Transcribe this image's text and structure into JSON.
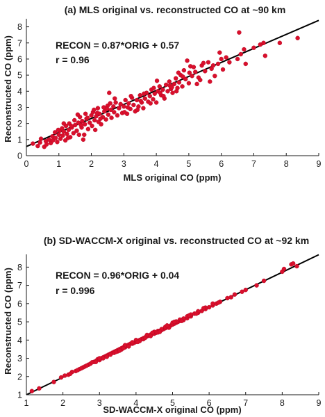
{
  "chart_data": [
    {
      "type": "scatter",
      "title": "(a) MLS original vs. reconstructed CO at ~90 km",
      "xlabel": "MLS original CO (ppm)",
      "ylabel": "Reconstructed CO (ppm)",
      "xlim": [
        0,
        9
      ],
      "ylim": [
        0,
        8.5
      ],
      "xticks": [
        "0",
        "1",
        "2",
        "3",
        "4",
        "5",
        "6",
        "7",
        "8",
        "9"
      ],
      "yticks": [
        "0",
        "1",
        "2",
        "3",
        "4",
        "5",
        "6",
        "7",
        "8"
      ],
      "annotation": {
        "equation": "RECON = 0.87*ORIG + 0.57",
        "r": "r = 0.96"
      },
      "fit": {
        "slope": 0.87,
        "intercept": 0.57
      },
      "grid": false,
      "colors": {
        "points": "#d9102c",
        "fit_line": "#000000"
      },
      "points": [
        [
          0.2,
          0.75
        ],
        [
          0.35,
          0.6
        ],
        [
          0.42,
          0.82
        ],
        [
          0.55,
          0.55
        ],
        [
          0.6,
          0.9
        ],
        [
          0.62,
          0.7
        ],
        [
          0.7,
          1.0
        ],
        [
          0.75,
          0.78
        ],
        [
          0.8,
          1.2
        ],
        [
          0.82,
          0.95
        ],
        [
          0.88,
          1.45
        ],
        [
          0.9,
          1.1
        ],
        [
          0.95,
          0.85
        ],
        [
          1.0,
          1.3
        ],
        [
          1.02,
          1.55
        ],
        [
          1.05,
          1.05
        ],
        [
          1.1,
          1.7
        ],
        [
          1.12,
          1.25
        ],
        [
          1.15,
          1.5
        ],
        [
          1.2,
          0.95
        ],
        [
          1.22,
          1.85
        ],
        [
          1.25,
          1.35
        ],
        [
          1.3,
          1.6
        ],
        [
          1.32,
          2.0
        ],
        [
          1.35,
          1.15
        ],
        [
          1.4,
          1.75
        ],
        [
          1.45,
          1.4
        ],
        [
          1.48,
          2.2
        ],
        [
          1.5,
          1.9
        ],
        [
          1.55,
          1.55
        ],
        [
          1.6,
          2.05
        ],
        [
          1.62,
          1.3
        ],
        [
          1.65,
          2.4
        ],
        [
          1.7,
          1.75
        ],
        [
          1.72,
          2.15
        ],
        [
          1.75,
          1.0
        ],
        [
          1.8,
          1.95
        ],
        [
          1.82,
          2.6
        ],
        [
          1.85,
          2.3
        ],
        [
          1.9,
          1.65
        ],
        [
          1.95,
          2.05
        ],
        [
          2.0,
          2.5
        ],
        [
          2.02,
          1.85
        ],
        [
          2.05,
          2.7
        ],
        [
          2.1,
          2.2
        ],
        [
          2.12,
          1.6
        ],
        [
          2.15,
          2.45
        ],
        [
          2.2,
          2.95
        ],
        [
          2.22,
          2.1
        ],
        [
          2.25,
          2.6
        ],
        [
          2.3,
          1.95
        ],
        [
          2.35,
          2.4
        ],
        [
          2.38,
          3.0
        ],
        [
          2.4,
          2.75
        ],
        [
          2.45,
          2.25
        ],
        [
          2.5,
          3.1
        ],
        [
          2.52,
          2.55
        ],
        [
          2.55,
          3.9
        ],
        [
          2.6,
          2.85
        ],
        [
          2.62,
          2.35
        ],
        [
          2.68,
          3.05
        ],
        [
          2.7,
          2.7
        ],
        [
          2.75,
          3.3
        ],
        [
          2.8,
          2.5
        ],
        [
          2.85,
          2.95
        ],
        [
          2.9,
          3.2
        ],
        [
          2.95,
          2.65
        ],
        [
          3.0,
          3.05
        ],
        [
          3.05,
          3.45
        ],
        [
          3.1,
          2.6
        ],
        [
          3.15,
          3.25
        ],
        [
          3.2,
          2.9
        ],
        [
          3.25,
          3.6
        ],
        [
          3.3,
          3.15
        ],
        [
          3.35,
          2.75
        ],
        [
          3.4,
          3.45
        ],
        [
          3.45,
          3.05
        ],
        [
          3.5,
          3.75
        ],
        [
          3.55,
          3.3
        ],
        [
          3.6,
          2.95
        ],
        [
          3.65,
          3.55
        ],
        [
          3.7,
          3.9
        ],
        [
          3.75,
          3.35
        ],
        [
          3.8,
          3.7
        ],
        [
          3.85,
          4.1
        ],
        [
          3.9,
          3.5
        ],
        [
          3.95,
          3.85
        ],
        [
          4.0,
          3.3
        ],
        [
          4.05,
          4.0
        ],
        [
          4.1,
          4.3
        ],
        [
          4.15,
          3.75
        ],
        [
          4.2,
          4.1
        ],
        [
          4.25,
          3.55
        ],
        [
          4.3,
          4.4
        ],
        [
          4.35,
          4.0
        ],
        [
          4.4,
          4.6
        ],
        [
          4.45,
          4.15
        ],
        [
          4.5,
          3.9
        ],
        [
          4.55,
          4.45
        ],
        [
          4.6,
          4.8
        ],
        [
          4.65,
          4.2
        ],
        [
          4.7,
          4.55
        ],
        [
          4.75,
          5.0
        ],
        [
          4.8,
          4.3
        ],
        [
          4.85,
          5.3
        ],
        [
          4.9,
          4.75
        ],
        [
          4.95,
          5.9
        ],
        [
          5.0,
          4.5
        ],
        [
          5.05,
          5.55
        ],
        [
          5.1,
          4.95
        ],
        [
          5.2,
          5.2
        ],
        [
          5.3,
          4.85
        ],
        [
          5.4,
          5.6
        ],
        [
          5.5,
          5.25
        ],
        [
          5.6,
          5.8
        ],
        [
          5.65,
          4.6
        ],
        [
          5.7,
          5.4
        ],
        [
          5.8,
          4.95
        ],
        [
          5.9,
          5.7
        ],
        [
          6.0,
          6.0
        ],
        [
          6.05,
          5.35
        ],
        [
          6.15,
          6.1
        ],
        [
          6.55,
          7.65
        ],
        [
          6.6,
          6.3
        ],
        [
          6.7,
          6.6
        ],
        [
          6.75,
          5.7
        ],
        [
          7.0,
          6.7
        ],
        [
          7.2,
          6.9
        ],
        [
          7.3,
          7.0
        ],
        [
          7.35,
          6.2
        ],
        [
          7.8,
          7.0
        ],
        [
          8.35,
          7.3
        ],
        [
          0.45,
          1.05
        ],
        [
          1.15,
          2.0
        ],
        [
          1.58,
          2.55
        ],
        [
          1.78,
          1.3
        ],
        [
          2.08,
          2.85
        ],
        [
          2.28,
          2.3
        ],
        [
          2.48,
          2.9
        ],
        [
          2.72,
          3.55
        ],
        [
          3.02,
          2.7
        ],
        [
          3.22,
          3.7
        ],
        [
          3.42,
          2.85
        ],
        [
          3.62,
          3.85
        ],
        [
          3.82,
          3.25
        ],
        [
          4.02,
          4.65
        ],
        [
          4.22,
          3.7
        ],
        [
          4.42,
          4.35
        ],
        [
          4.62,
          4.0
        ],
        [
          4.82,
          4.9
        ],
        [
          5.02,
          5.15
        ],
        [
          5.25,
          4.45
        ],
        [
          5.45,
          5.75
        ],
        [
          5.75,
          5.6
        ],
        [
          5.95,
          6.4
        ],
        [
          6.25,
          5.8
        ],
        [
          6.5,
          6.0
        ],
        [
          1.38,
          1.85
        ],
        [
          1.68,
          1.9
        ],
        [
          2.18,
          2.65
        ],
        [
          2.58,
          3.25
        ],
        [
          3.12,
          3.0
        ],
        [
          3.52,
          3.4
        ],
        [
          3.92,
          4.2
        ],
        [
          4.12,
          3.9
        ],
        [
          4.48,
          4.25
        ],
        [
          4.68,
          5.15
        ],
        [
          5.15,
          5.5
        ],
        [
          5.35,
          4.7
        ],
        [
          0.98,
          1.6
        ],
        [
          1.28,
          1.1
        ],
        [
          1.88,
          2.35
        ]
      ]
    },
    {
      "type": "scatter",
      "title": "(b) SD-WACCM-X original vs. reconstructed CO at ~92 km",
      "xlabel": "SD-WACCM-X original CO (ppm)",
      "ylabel": "Reconstructed CO (ppm)",
      "xlim": [
        1,
        9
      ],
      "ylim": [
        1,
        8.7
      ],
      "xticks": [
        "1",
        "2",
        "3",
        "4",
        "5",
        "6",
        "7",
        "8",
        "9"
      ],
      "yticks": [
        "1",
        "2",
        "3",
        "4",
        "5",
        "6",
        "7",
        "8"
      ],
      "annotation": {
        "equation": "RECON = 0.96*ORIG + 0.04",
        "r": "r = 0.996"
      },
      "fit": {
        "slope": 0.96,
        "intercept": 0.04
      },
      "grid": false,
      "colors": {
        "points": "#d9102c",
        "fit_line": "#000000"
      },
      "points": [
        [
          1.15,
          1.2
        ],
        [
          1.35,
          1.35
        ],
        [
          1.75,
          1.7
        ],
        [
          1.95,
          1.95
        ],
        [
          2.05,
          2.05
        ],
        [
          2.15,
          2.1
        ],
        [
          2.25,
          2.25
        ],
        [
          2.35,
          2.3
        ],
        [
          2.45,
          2.4
        ],
        [
          2.55,
          2.5
        ],
        [
          2.6,
          2.55
        ],
        [
          2.7,
          2.65
        ],
        [
          2.75,
          2.7
        ],
        [
          2.85,
          2.8
        ],
        [
          2.9,
          2.85
        ],
        [
          2.95,
          2.95
        ],
        [
          3.0,
          2.9
        ],
        [
          3.05,
          3.0
        ],
        [
          3.1,
          3.05
        ],
        [
          3.15,
          3.1
        ],
        [
          3.2,
          3.15
        ],
        [
          3.25,
          3.2
        ],
        [
          3.3,
          3.25
        ],
        [
          3.35,
          3.3
        ],
        [
          3.4,
          3.35
        ],
        [
          3.45,
          3.4
        ],
        [
          3.5,
          3.45
        ],
        [
          3.55,
          3.5
        ],
        [
          3.6,
          3.55
        ],
        [
          3.65,
          3.6
        ],
        [
          3.7,
          3.6
        ],
        [
          3.75,
          3.7
        ],
        [
          3.8,
          3.75
        ],
        [
          3.85,
          3.8
        ],
        [
          3.9,
          3.8
        ],
        [
          3.95,
          3.85
        ],
        [
          4.0,
          3.9
        ],
        [
          4.05,
          3.95
        ],
        [
          4.1,
          4.0
        ],
        [
          4.15,
          4.05
        ],
        [
          4.2,
          4.1
        ],
        [
          4.25,
          4.15
        ],
        [
          4.3,
          4.2
        ],
        [
          4.35,
          4.25
        ],
        [
          4.4,
          4.3
        ],
        [
          4.45,
          4.35
        ],
        [
          4.5,
          4.35
        ],
        [
          4.55,
          4.4
        ],
        [
          4.6,
          4.5
        ],
        [
          4.65,
          4.5
        ],
        [
          4.7,
          4.55
        ],
        [
          4.75,
          4.6
        ],
        [
          4.8,
          4.65
        ],
        [
          4.85,
          4.7
        ],
        [
          4.9,
          4.75
        ],
        [
          4.95,
          4.8
        ],
        [
          5.0,
          4.85
        ],
        [
          5.05,
          4.9
        ],
        [
          5.1,
          4.95
        ],
        [
          5.15,
          5.0
        ],
        [
          5.2,
          5.05
        ],
        [
          5.3,
          5.1
        ],
        [
          5.4,
          5.2
        ],
        [
          5.5,
          5.3
        ],
        [
          5.6,
          5.45
        ],
        [
          5.7,
          5.5
        ],
        [
          5.8,
          5.6
        ],
        [
          5.9,
          5.7
        ],
        [
          6.0,
          5.8
        ],
        [
          6.1,
          5.9
        ],
        [
          6.2,
          6.0
        ],
        [
          6.3,
          6.1
        ],
        [
          6.5,
          6.3
        ],
        [
          6.7,
          6.5
        ],
        [
          6.9,
          6.65
        ],
        [
          7.0,
          6.75
        ],
        [
          7.3,
          7.0
        ],
        [
          7.5,
          7.25
        ],
        [
          8.0,
          7.75
        ],
        [
          8.05,
          7.9
        ],
        [
          8.25,
          8.15
        ],
        [
          8.4,
          8.05
        ],
        [
          8.3,
          8.2
        ],
        [
          2.5,
          2.45
        ],
        [
          2.8,
          2.78
        ],
        [
          3.1,
          3.0
        ],
        [
          3.3,
          3.2
        ],
        [
          3.5,
          3.38
        ],
        [
          3.7,
          3.72
        ],
        [
          3.9,
          3.88
        ],
        [
          4.1,
          3.95
        ],
        [
          4.3,
          4.28
        ],
        [
          4.5,
          4.45
        ],
        [
          4.7,
          4.6
        ],
        [
          4.9,
          4.68
        ],
        [
          5.1,
          5.02
        ],
        [
          5.3,
          5.18
        ],
        [
          5.5,
          5.4
        ],
        [
          5.7,
          5.58
        ],
        [
          5.9,
          5.78
        ],
        [
          6.1,
          6.0
        ],
        [
          3.8,
          3.65
        ],
        [
          4.0,
          4.0
        ],
        [
          4.4,
          4.22
        ],
        [
          4.6,
          4.42
        ],
        [
          4.8,
          4.72
        ],
        [
          5.0,
          4.95
        ],
        [
          3.2,
          3.08
        ],
        [
          3.4,
          3.3
        ],
        [
          3.6,
          3.48
        ],
        [
          4.2,
          4.05
        ],
        [
          5.2,
          5.12
        ],
        [
          5.4,
          5.3
        ],
        [
          2.2,
          2.15
        ],
        [
          2.4,
          2.35
        ],
        [
          2.65,
          2.6
        ],
        [
          3.0,
          3.0
        ],
        [
          3.45,
          3.35
        ],
        [
          3.65,
          3.55
        ],
        [
          4.05,
          3.9
        ],
        [
          4.25,
          4.12
        ],
        [
          4.45,
          4.4
        ],
        [
          4.65,
          4.45
        ],
        [
          4.85,
          4.8
        ],
        [
          5.05,
          5.0
        ],
        [
          5.25,
          5.05
        ],
        [
          5.45,
          5.35
        ],
        [
          5.65,
          5.45
        ],
        [
          5.85,
          5.75
        ],
        [
          6.25,
          6.05
        ],
        [
          6.6,
          6.35
        ],
        [
          2.9,
          2.8
        ],
        [
          3.55,
          3.42
        ]
      ]
    }
  ]
}
